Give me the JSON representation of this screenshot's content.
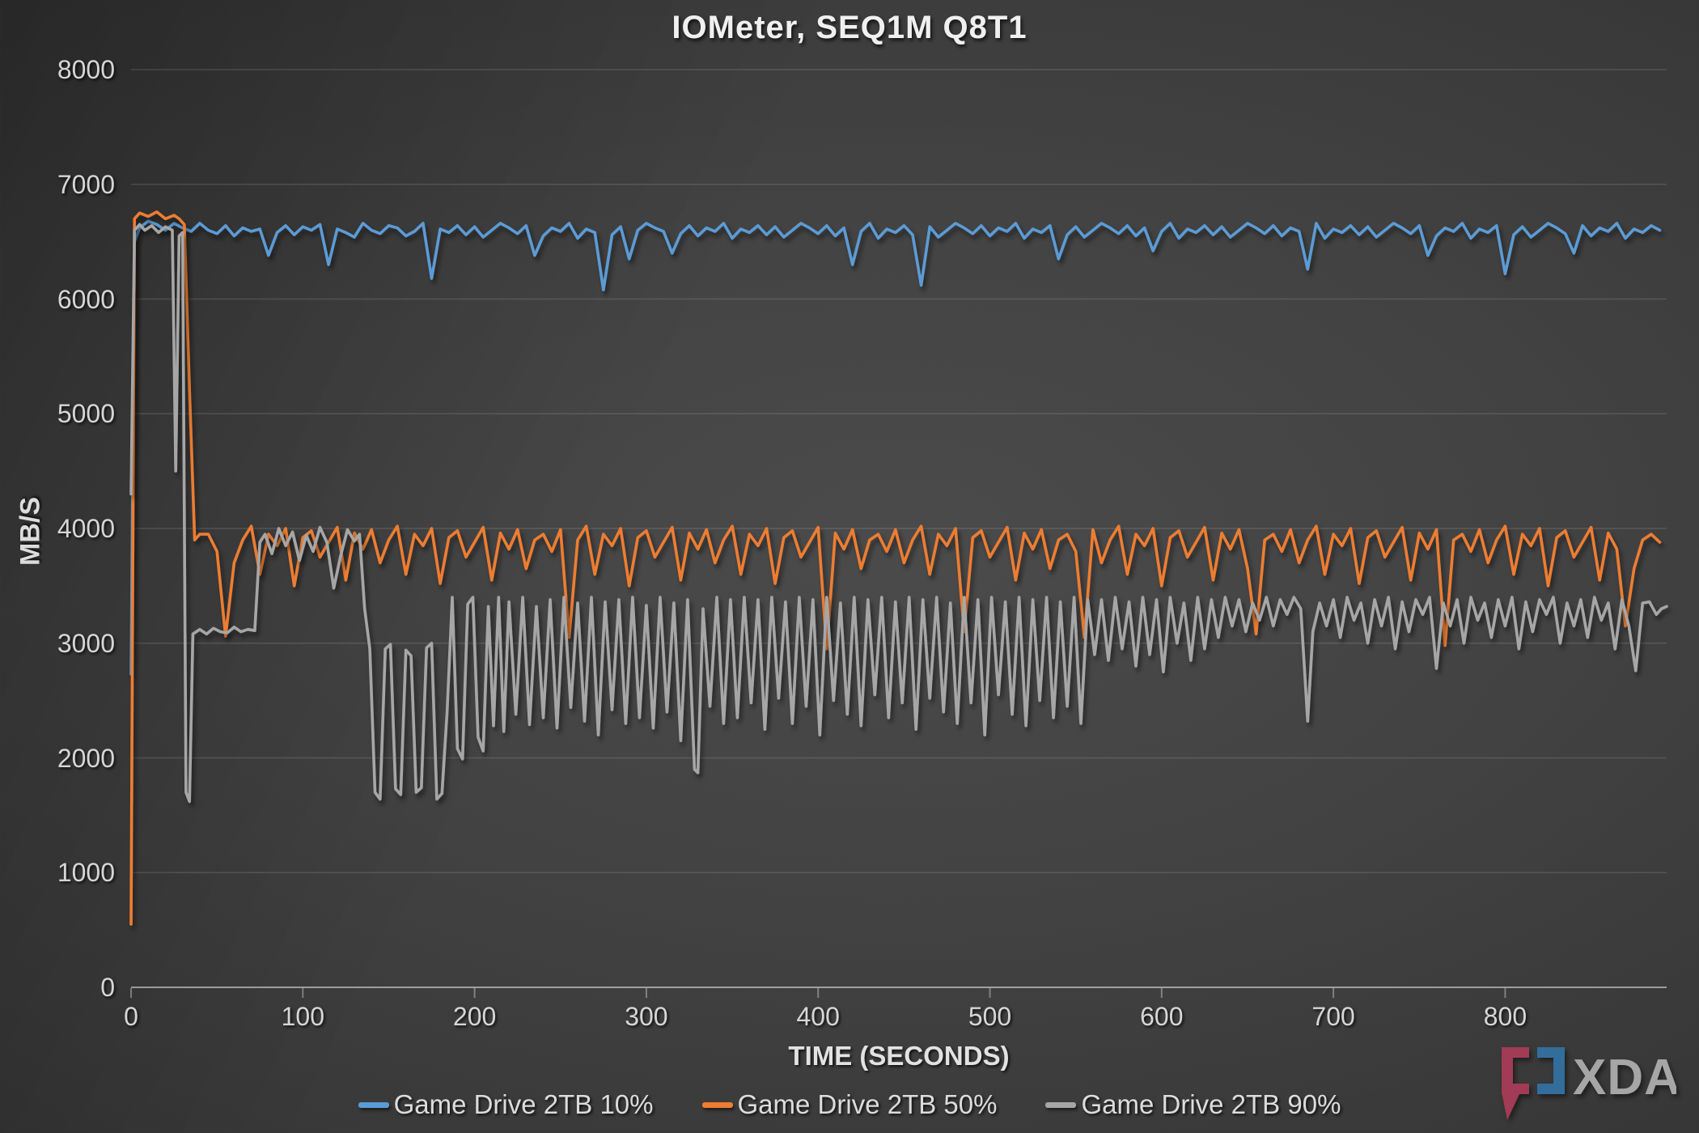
{
  "chart": {
    "title": "IOMeter, SEQ1M Q8T1",
    "x_axis": {
      "title": "TIME (SECONDS)",
      "min": 0,
      "max": 894,
      "ticks": [
        0,
        100,
        200,
        300,
        400,
        500,
        600,
        700,
        800
      ]
    },
    "y_axis": {
      "title": "MB/S",
      "min": 0,
      "max": 8000,
      "ticks": [
        0,
        1000,
        2000,
        3000,
        4000,
        5000,
        6000,
        7000,
        8000
      ]
    }
  },
  "logo": {
    "text": "XDA",
    "bracket_red": "#a23b55",
    "bracket_blue": "#336d9c",
    "text_gray": "#a6a6a6"
  },
  "chart_data": {
    "type": "line",
    "title": "IOMeter, SEQ1M Q8T1",
    "xlabel": "TIME (SECONDS)",
    "ylabel": "MB/S",
    "xlim": [
      0,
      894
    ],
    "ylim": [
      0,
      8000
    ],
    "grid": "horizontal",
    "legend_position": "bottom-center",
    "series": [
      {
        "name": "Game Drive 2TB 10%",
        "color": "#5b9bd5",
        "head": [
          [
            0,
            2730
          ],
          [
            2,
            6500
          ]
        ],
        "start": 5,
        "step": 5,
        "v": [
          6620,
          6680,
          6650,
          6600,
          6660,
          6620,
          6590,
          6660,
          6600,
          6570,
          6640,
          6550,
          6620,
          6590,
          6610,
          6380,
          6580,
          6640,
          6560,
          6630,
          6600,
          6650,
          6300,
          6610,
          6580,
          6540,
          6660,
          6600,
          6570,
          6640,
          6620,
          6550,
          6590,
          6660,
          6180,
          6610,
          6580,
          6640,
          6560,
          6630,
          6540,
          6600,
          6660,
          6620,
          6570,
          6640,
          6380,
          6550,
          6620,
          6590,
          6660,
          6530,
          6610,
          6580,
          6080,
          6560,
          6630,
          6350,
          6600,
          6660,
          6620,
          6590,
          6400,
          6570,
          6640,
          6550,
          6620,
          6590,
          6660,
          6530,
          6610,
          6580,
          6640,
          6560,
          6630,
          6540,
          6600,
          6660,
          6620,
          6570,
          6640,
          6550,
          6620,
          6300,
          6590,
          6660,
          6530,
          6610,
          6580,
          6640,
          6560,
          6120,
          6630,
          6540,
          6600,
          6660,
          6620,
          6570,
          6640,
          6550,
          6620,
          6590,
          6660,
          6530,
          6610,
          6580,
          6640,
          6350,
          6560,
          6630,
          6540,
          6600,
          6660,
          6620,
          6570,
          6640,
          6550,
          6620,
          6420,
          6590,
          6660,
          6530,
          6610,
          6580,
          6640,
          6560,
          6630,
          6540,
          6600,
          6660,
          6620,
          6570,
          6640,
          6550,
          6620,
          6590,
          6260,
          6660,
          6530,
          6610,
          6580,
          6640,
          6560,
          6630,
          6540,
          6600,
          6660,
          6620,
          6570,
          6640,
          6380,
          6550,
          6620,
          6590,
          6660,
          6530,
          6610,
          6580,
          6640,
          6220,
          6560,
          6630,
          6540,
          6600,
          6660,
          6620,
          6570,
          6400,
          6640,
          6550,
          6620,
          6590,
          6660,
          6530,
          6610,
          6580,
          6640,
          6600
        ]
      },
      {
        "name": "Game Drive 2TB 50%",
        "color": "#ed7d31",
        "head": [
          [
            0,
            550
          ],
          [
            2,
            6700
          ],
          [
            5,
            6750
          ],
          [
            10,
            6720
          ],
          [
            15,
            6760
          ],
          [
            20,
            6700
          ],
          [
            25,
            6730
          ],
          [
            28,
            6700
          ],
          [
            31,
            6650
          ],
          [
            34,
            5200
          ],
          [
            37,
            3900
          ],
          [
            40,
            3950
          ]
        ],
        "start": 45,
        "step": 5,
        "v": [
          3950,
          3800,
          3060,
          3700,
          3900,
          4020,
          3600,
          3950,
          3850,
          4000,
          3500,
          3920,
          3980,
          3750,
          3880,
          4010,
          3550,
          3960,
          3820,
          3990,
          3700,
          3900,
          4020,
          3600,
          3950,
          3850,
          4000,
          3520,
          3920,
          3980,
          3750,
          3880,
          4010,
          3550,
          3960,
          3820,
          3990,
          3650,
          3900,
          3950,
          3800,
          3990,
          3050,
          3900,
          4020,
          3600,
          3950,
          3850,
          4000,
          3500,
          3920,
          3980,
          3750,
          3880,
          4010,
          3550,
          3960,
          3820,
          3990,
          3700,
          3900,
          4020,
          3600,
          3950,
          3850,
          4000,
          3520,
          3920,
          3980,
          3750,
          3880,
          4010,
          2950,
          3960,
          3820,
          3990,
          3650,
          3900,
          3950,
          3800,
          3990,
          3700,
          3900,
          4020,
          3600,
          3950,
          3850,
          4000,
          3100,
          3920,
          3980,
          3750,
          3880,
          4010,
          3550,
          3960,
          3820,
          3990,
          3650,
          3900,
          3950,
          3800,
          3050,
          3990,
          3700,
          3900,
          4020,
          3600,
          3950,
          3850,
          4000,
          3500,
          3920,
          3980,
          3750,
          3880,
          4010,
          3550,
          3960,
          3820,
          3990,
          3650,
          3080,
          3900,
          3950,
          3800,
          3990,
          3700,
          3900,
          4020,
          3600,
          3950,
          3850,
          4000,
          3520,
          3920,
          3980,
          3750,
          3880,
          4010,
          3550,
          3960,
          3820,
          3990,
          2980,
          3900,
          3950,
          3800,
          3990,
          3700,
          3900,
          4020,
          3600,
          3950,
          3850,
          4000,
          3500,
          3920,
          3980,
          3750,
          3880,
          4010,
          3550,
          3960,
          3820,
          3150,
          3650,
          3900,
          3950,
          3880
        ]
      },
      {
        "name": "Game Drive 2TB 90%",
        "color": "#a6a6a6",
        "t": [
          0,
          2,
          5,
          8,
          12,
          16,
          20,
          24,
          26,
          28,
          30,
          32,
          34,
          36,
          40,
          44,
          48,
          52,
          56,
          60,
          64,
          68,
          72,
          75,
          78,
          82,
          86,
          90,
          94,
          98,
          102,
          106,
          110,
          114,
          118,
          122,
          126,
          130,
          133,
          136,
          139,
          142,
          145,
          148,
          151,
          154,
          157,
          160,
          163,
          166,
          169,
          172,
          175,
          178,
          181,
          184,
          187,
          190,
          193,
          196,
          199,
          202,
          205,
          208,
          211,
          214,
          217,
          220,
          224,
          228,
          232,
          236,
          240,
          244,
          248,
          252,
          256,
          260,
          264,
          268,
          272,
          276,
          280,
          284,
          288,
          292,
          296,
          300,
          304,
          308,
          312,
          316,
          320,
          324,
          328,
          330,
          333,
          337,
          341,
          345,
          349,
          353,
          357,
          361,
          365,
          369,
          373,
          377,
          381,
          385,
          389,
          393,
          397,
          401,
          405,
          409,
          413,
          417,
          421,
          425,
          429,
          433,
          437,
          441,
          445,
          449,
          453,
          457,
          461,
          465,
          469,
          473,
          477,
          481,
          485,
          489,
          493,
          497,
          501,
          505,
          509,
          513,
          517,
          521,
          525,
          529,
          533,
          537,
          541,
          545,
          549,
          553,
          557,
          561,
          565,
          569,
          573,
          577,
          581,
          585,
          589,
          593,
          597,
          601,
          605,
          609,
          613,
          617,
          621,
          625,
          629,
          633,
          637,
          641,
          645,
          649,
          653,
          657,
          661,
          665,
          669,
          673,
          677,
          681,
          685,
          688,
          692,
          696,
          700,
          704,
          708,
          712,
          716,
          720,
          724,
          728,
          732,
          736,
          740,
          744,
          748,
          752,
          756,
          760,
          764,
          768,
          772,
          776,
          780,
          784,
          788,
          792,
          796,
          800,
          804,
          808,
          812,
          816,
          820,
          824,
          828,
          832,
          836,
          840,
          844,
          848,
          852,
          856,
          860,
          864,
          868,
          872,
          876,
          880,
          884,
          888,
          891,
          894
        ],
        "v": [
          4300,
          6600,
          6650,
          6600,
          6640,
          6580,
          6630,
          6600,
          4500,
          6550,
          6580,
          1700,
          1620,
          3080,
          3120,
          3080,
          3130,
          3100,
          3090,
          3140,
          3100,
          3120,
          3110,
          3880,
          3950,
          3780,
          4000,
          3850,
          3970,
          3720,
          3940,
          3800,
          4010,
          3880,
          3480,
          3760,
          3990,
          3890,
          3950,
          3300,
          2950,
          1700,
          1640,
          2950,
          2990,
          1730,
          1680,
          2940,
          2890,
          1700,
          1740,
          2960,
          3000,
          1640,
          1690,
          2400,
          3400,
          2080,
          1990,
          3340,
          3400,
          2180,
          2060,
          3320,
          2280,
          3400,
          2230,
          3360,
          2380,
          3400,
          2290,
          3320,
          2350,
          3380,
          2260,
          3400,
          2440,
          3350,
          2320,
          3400,
          2200,
          3360,
          2420,
          3380,
          2300,
          3400,
          2350,
          3330,
          2260,
          3400,
          2400,
          3350,
          2150,
          3380,
          1900,
          1870,
          3300,
          2450,
          3400,
          2300,
          3380,
          2350,
          3400,
          2480,
          3380,
          2250,
          3400,
          2520,
          3360,
          2300,
          3400,
          2450,
          3380,
          2200,
          3400,
          2500,
          3350,
          2380,
          3400,
          2280,
          3380,
          2550,
          3400,
          2350,
          3360,
          2480,
          3400,
          2250,
          3380,
          2520,
          3400,
          2400,
          3350,
          2300,
          3400,
          2480,
          3380,
          2200,
          3400,
          2550,
          3360,
          2380,
          3400,
          2280,
          3380,
          2500,
          3400,
          2350,
          3360,
          2450,
          3400,
          2300,
          3380,
          2900,
          3380,
          2850,
          3400,
          2950,
          3360,
          2800,
          3400,
          2900,
          3380,
          2750,
          3400,
          3000,
          3350,
          2850,
          3400,
          2950,
          3380,
          3050,
          3400,
          3150,
          3380,
          3100,
          3350,
          3200,
          3400,
          3150,
          3380,
          3250,
          3400,
          3300,
          2320,
          3100,
          3350,
          3150,
          3380,
          3050,
          3400,
          3200,
          3350,
          3000,
          3380,
          3150,
          3400,
          2950,
          3360,
          3100,
          3380,
          3250,
          3400,
          2780,
          3350,
          3150,
          3380,
          3000,
          3400,
          3200,
          3350,
          3050,
          3380,
          3150,
          3400,
          2950,
          3360,
          3100,
          3380,
          3250,
          3400,
          3000,
          3350,
          3150,
          3380,
          3050,
          3400,
          3200,
          3350,
          2950,
          3380,
          3150,
          2760,
          3350,
          3360,
          3250,
          3300,
          3320
        ]
      }
    ]
  }
}
